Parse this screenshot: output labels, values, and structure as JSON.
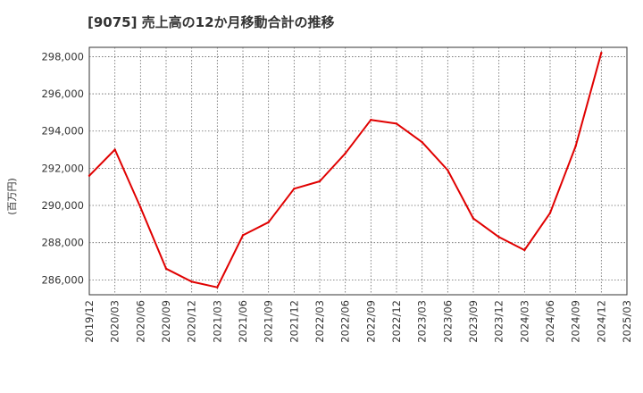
{
  "chart_data": {
    "type": "line",
    "title": "[9075]  売上高の12か月移動合計の推移",
    "ylabel": "(百万円)",
    "xlabel": "",
    "ylim": [
      285200,
      298500
    ],
    "yticks": [
      286000,
      288000,
      290000,
      292000,
      294000,
      296000,
      298000
    ],
    "ytick_labels": [
      "286,000",
      "288,000",
      "290,000",
      "292,000",
      "294,000",
      "296,000",
      "298,000"
    ],
    "categories": [
      "2019/12",
      "2020/03",
      "2020/06",
      "2020/09",
      "2020/12",
      "2021/03",
      "2021/06",
      "2021/09",
      "2021/12",
      "2022/03",
      "2022/06",
      "2022/09",
      "2022/12",
      "2023/03",
      "2023/06",
      "2023/09",
      "2023/12",
      "2024/03",
      "2024/06",
      "2024/09",
      "2024/12",
      "2025/03"
    ],
    "series": [
      {
        "name": "売上高の12か月移動合計",
        "color": "#e00000",
        "values": [
          291600,
          293000,
          289900,
          286600,
          285900,
          285600,
          288400,
          289100,
          290900,
          291300,
          292800,
          294600,
          294400,
          293400,
          291900,
          289300,
          288300,
          287600,
          289600,
          293200,
          298200,
          null
        ]
      }
    ],
    "grid": true
  }
}
